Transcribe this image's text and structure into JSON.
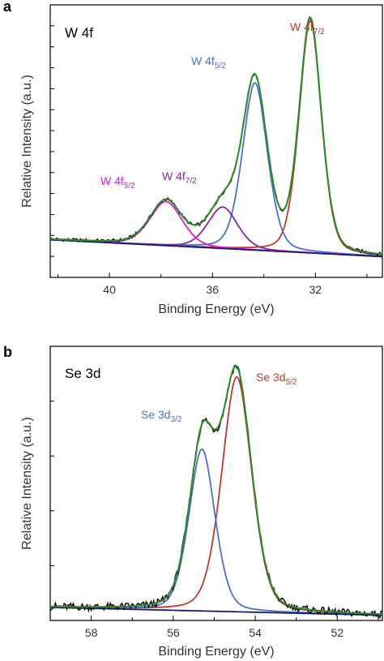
{
  "chart_data": [
    {
      "type": "line",
      "panel_letter": "a",
      "title": "W 4f",
      "xlabel": "Binding Energy (eV)",
      "ylabel": "Relative Intensity (a.u.)",
      "xlim": [
        42.3,
        29.4
      ],
      "ylim": [
        -0.05,
        1.0
      ],
      "x_ticks": [
        40,
        36,
        32
      ],
      "x_tick_labels": [
        "40",
        "36",
        "32"
      ],
      "grid": false,
      "colors": {
        "data": "#111111",
        "fit": "#2e8b2e",
        "baseline": "#1a1a6e"
      },
      "baseline": {
        "color": "#1a1a6e",
        "x": [
          42.3,
          29.4
        ],
        "y": [
          0.095,
          0.03
        ]
      },
      "components": [
        {
          "name": "W 4f7/2",
          "label_main": "W 4f",
          "label_sub": "7/2",
          "color": "#c0392b",
          "center": 32.2,
          "height": 0.895,
          "width": 0.45
        },
        {
          "name": "W 4f5/2",
          "label_main": "W 4f",
          "label_sub": "5/2",
          "color": "#4a6fd4",
          "center": 34.35,
          "height": 0.645,
          "width": 0.5
        },
        {
          "name": "W 4f7/2",
          "label_main": "W 4f",
          "label_sub": "7/2",
          "color": "#8e24aa",
          "center": 35.6,
          "height": 0.16,
          "width": 0.6
        },
        {
          "name": "W 4f5/2",
          "label_main": "W 4f",
          "label_sub": "5/2",
          "color": "#d81bd8",
          "center": 37.8,
          "height": 0.17,
          "width": 0.65
        }
      ],
      "label_positions": [
        "upper-right",
        "upper-middle",
        "left-middle",
        "left"
      ]
    },
    {
      "type": "line",
      "panel_letter": "b",
      "title": "Se 3d",
      "xlabel": "Binding Energy (eV)",
      "ylabel": "Relative Intensity (a.u.)",
      "xlim": [
        59.0,
        50.9
      ],
      "ylim": [
        -0.05,
        1.0
      ],
      "x_ticks": [
        58,
        56,
        54,
        52
      ],
      "x_tick_labels": [
        "58",
        "56",
        "54",
        "52"
      ],
      "grid": false,
      "colors": {
        "data": "#111111",
        "fit": "#2e8b2e",
        "baseline": "#1a1a6e"
      },
      "baseline": {
        "color": "#1a1a6e",
        "x": [
          59.0,
          50.9
        ],
        "y": [
          0.0,
          -0.03
        ]
      },
      "components": [
        {
          "name": "Se 3d5/2",
          "label_main": "Se 3d",
          "label_sub": "5/2",
          "color": "#c0392b",
          "center": 54.45,
          "height": 0.9,
          "width": 0.38
        },
        {
          "name": "Se 3d3/2",
          "label_main": "Se 3d",
          "label_sub": "3/2",
          "color": "#4a6fd4",
          "center": 55.3,
          "height": 0.62,
          "width": 0.33
        }
      ],
      "label_positions": [
        "upper-right",
        "left"
      ]
    }
  ]
}
